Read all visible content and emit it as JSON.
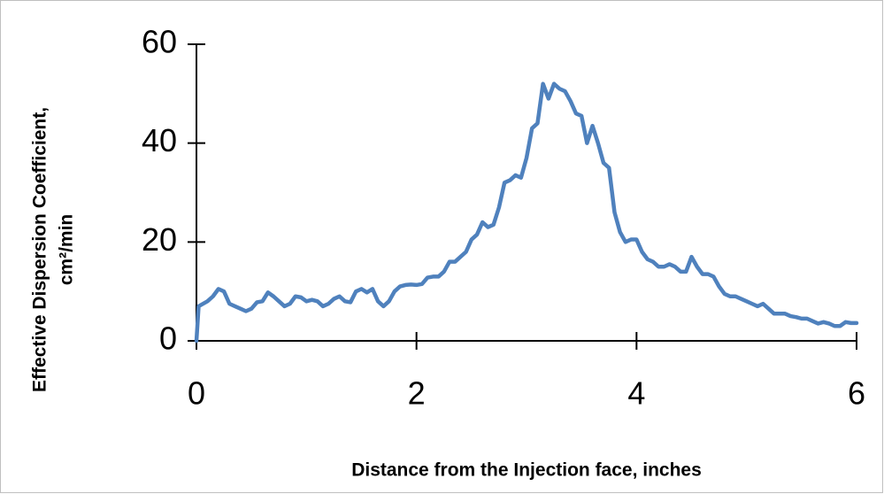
{
  "chart_data": {
    "type": "line",
    "x_label": "Distance from the Injection face, inches",
    "y_label": [
      "Effective Dispersion Coefficient,",
      "cm²/min"
    ],
    "xlim": [
      0,
      6
    ],
    "xticks": [
      0,
      2,
      4,
      6
    ],
    "ylim": [
      0,
      60
    ],
    "yticks": [
      0,
      20,
      40,
      60
    ],
    "grid": false,
    "series": [
      {
        "color": "#4f81bd",
        "x": [
          0,
          0.02,
          0.1,
          0.15,
          0.2,
          0.25,
          0.3,
          0.35,
          0.4,
          0.45,
          0.5,
          0.55,
          0.6,
          0.65,
          0.7,
          0.75,
          0.8,
          0.85,
          0.9,
          0.95,
          1.0,
          1.05,
          1.1,
          1.15,
          1.2,
          1.25,
          1.3,
          1.35,
          1.4,
          1.45,
          1.5,
          1.55,
          1.6,
          1.65,
          1.7,
          1.75,
          1.8,
          1.85,
          1.9,
          1.95,
          2.0,
          2.05,
          2.1,
          2.15,
          2.2,
          2.25,
          2.3,
          2.35,
          2.4,
          2.45,
          2.5,
          2.55,
          2.6,
          2.65,
          2.7,
          2.75,
          2.8,
          2.85,
          2.9,
          2.95,
          3.0,
          3.05,
          3.1,
          3.15,
          3.2,
          3.25,
          3.3,
          3.35,
          3.4,
          3.45,
          3.5,
          3.55,
          3.6,
          3.65,
          3.7,
          3.75,
          3.8,
          3.85,
          3.9,
          3.95,
          4.0,
          4.05,
          4.1,
          4.15,
          4.2,
          4.25,
          4.3,
          4.35,
          4.4,
          4.45,
          4.5,
          4.55,
          4.6,
          4.65,
          4.7,
          4.75,
          4.8,
          4.85,
          4.9,
          4.95,
          5.0,
          5.05,
          5.1,
          5.15,
          5.2,
          5.25,
          5.3,
          5.35,
          5.4,
          5.45,
          5.5,
          5.55,
          5.6,
          5.65,
          5.7,
          5.75,
          5.8,
          5.85,
          5.9,
          5.95,
          6.0
        ],
        "values": [
          0,
          7,
          8,
          9,
          10.5,
          10,
          7.5,
          7,
          6.5,
          6,
          6.5,
          7.8,
          8,
          9.8,
          9,
          8,
          7,
          7.5,
          9,
          8.8,
          8,
          8.3,
          8,
          7,
          7.5,
          8.5,
          9,
          8,
          7.8,
          10,
          10.5,
          9.8,
          10.5,
          8,
          7,
          8,
          10,
          11,
          11.3,
          11.4,
          11.3,
          11.5,
          12.8,
          13,
          13,
          14,
          16,
          16,
          17,
          18,
          20.5,
          21.5,
          24,
          23,
          23.5,
          27,
          32,
          32.5,
          33.5,
          33,
          37,
          43,
          44,
          52,
          49,
          52,
          51,
          50.5,
          48.5,
          46,
          45.5,
          40,
          43.5,
          40,
          36,
          35,
          26,
          22,
          20,
          20.5,
          20.5,
          18,
          16.5,
          16,
          15,
          15,
          15.5,
          15,
          14,
          14,
          17,
          15,
          13.5,
          13.5,
          13,
          11,
          9.5,
          9,
          9,
          8.5,
          8,
          7.5,
          7,
          7.5,
          6.5,
          5.5,
          5.5,
          5.5,
          5,
          4.8,
          4.5,
          4.5,
          4,
          3.5,
          3.8,
          3.5,
          3,
          3,
          3.8,
          3.6,
          3.6
        ]
      }
    ]
  }
}
